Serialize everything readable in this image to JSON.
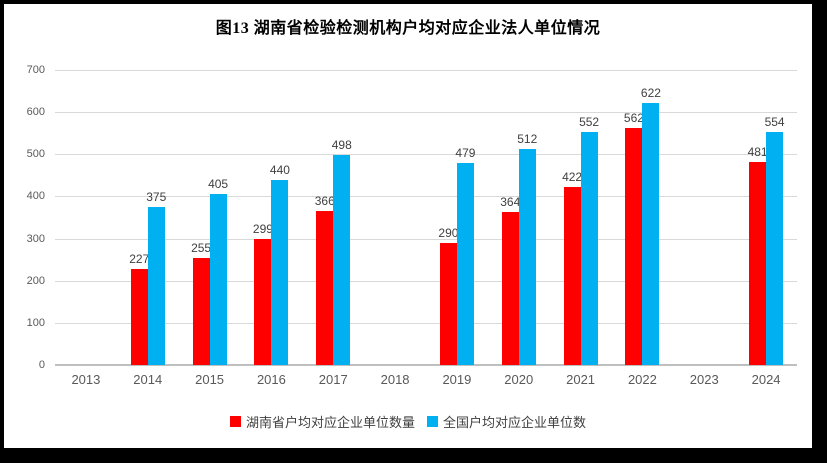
{
  "title": "图13 湖南省检验检测机构户均对应企业法人单位情况",
  "chart_data": {
    "type": "bar",
    "title": "图13 湖南省检验检测机构户均对应企业法人单位情况",
    "categories": [
      "2013",
      "2014",
      "2015",
      "2016",
      "2017",
      "2018",
      "2019",
      "2020",
      "2021",
      "2022",
      "2023",
      "2024"
    ],
    "series": [
      {
        "name": "湖南省户均对应企业单位数量",
        "color": "#FF0000",
        "values": [
          null,
          227,
          255,
          299,
          366,
          null,
          290,
          364,
          422,
          562,
          null,
          481
        ]
      },
      {
        "name": "全国户均对应企业单位数",
        "color": "#00B0F0",
        "values": [
          null,
          375,
          405,
          440,
          498,
          null,
          479,
          512,
          552,
          622,
          null,
          554
        ]
      }
    ],
    "xlabel": "",
    "ylabel": "",
    "ylim": [
      0,
      700
    ],
    "yticks": [
      0,
      100,
      200,
      300,
      400,
      500,
      600,
      700
    ],
    "grid": true,
    "data_labels": true,
    "legend_position": "bottom"
  }
}
